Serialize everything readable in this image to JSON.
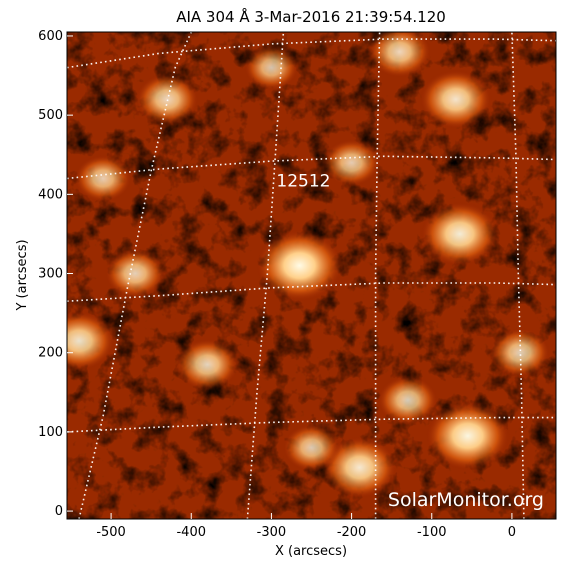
{
  "header": {
    "title": "AIA 304 Å  3-Mar-2016 21:39:54.120"
  },
  "axes": {
    "xlabel": "X (arcsecs)",
    "ylabel": "Y (arcsecs)",
    "xrange": [
      -555,
      55
    ],
    "yrange": [
      -10,
      605
    ],
    "xticks": [
      -500,
      -400,
      -300,
      -200,
      -100,
      0
    ],
    "yticks": [
      0,
      100,
      200,
      300,
      400,
      500,
      600
    ]
  },
  "region": {
    "label": "12512",
    "x": -260,
    "y": 410
  },
  "brightenings": [
    {
      "x": -265,
      "y": 310,
      "level": 1.0
    },
    {
      "x": -55,
      "y": 95,
      "level": 0.95
    },
    {
      "x": -65,
      "y": 350,
      "level": 0.85
    },
    {
      "x": -190,
      "y": 55,
      "level": 0.8
    },
    {
      "x": -70,
      "y": 520,
      "level": 0.75
    },
    {
      "x": -540,
      "y": 215,
      "level": 0.75
    },
    {
      "x": -430,
      "y": 520,
      "level": 0.6
    },
    {
      "x": -140,
      "y": 580,
      "level": 0.6
    },
    {
      "x": -380,
      "y": 185,
      "level": 0.6
    },
    {
      "x": -130,
      "y": 140,
      "level": 0.55
    },
    {
      "x": -250,
      "y": 80,
      "level": 0.5
    },
    {
      "x": -470,
      "y": 300,
      "level": 0.55
    },
    {
      "x": -200,
      "y": 440,
      "level": 0.5
    },
    {
      "x": 10,
      "y": 200,
      "level": 0.55
    },
    {
      "x": -510,
      "y": 420,
      "level": 0.5
    },
    {
      "x": -300,
      "y": 560,
      "level": 0.45
    }
  ],
  "watermark": "SolarMonitor.org",
  "colors": {
    "background": "#ffffff",
    "map_dark": "#000000",
    "map_mid": "#8c1a00",
    "map_bright": "#ffd08a",
    "grid": "#ffffff"
  }
}
